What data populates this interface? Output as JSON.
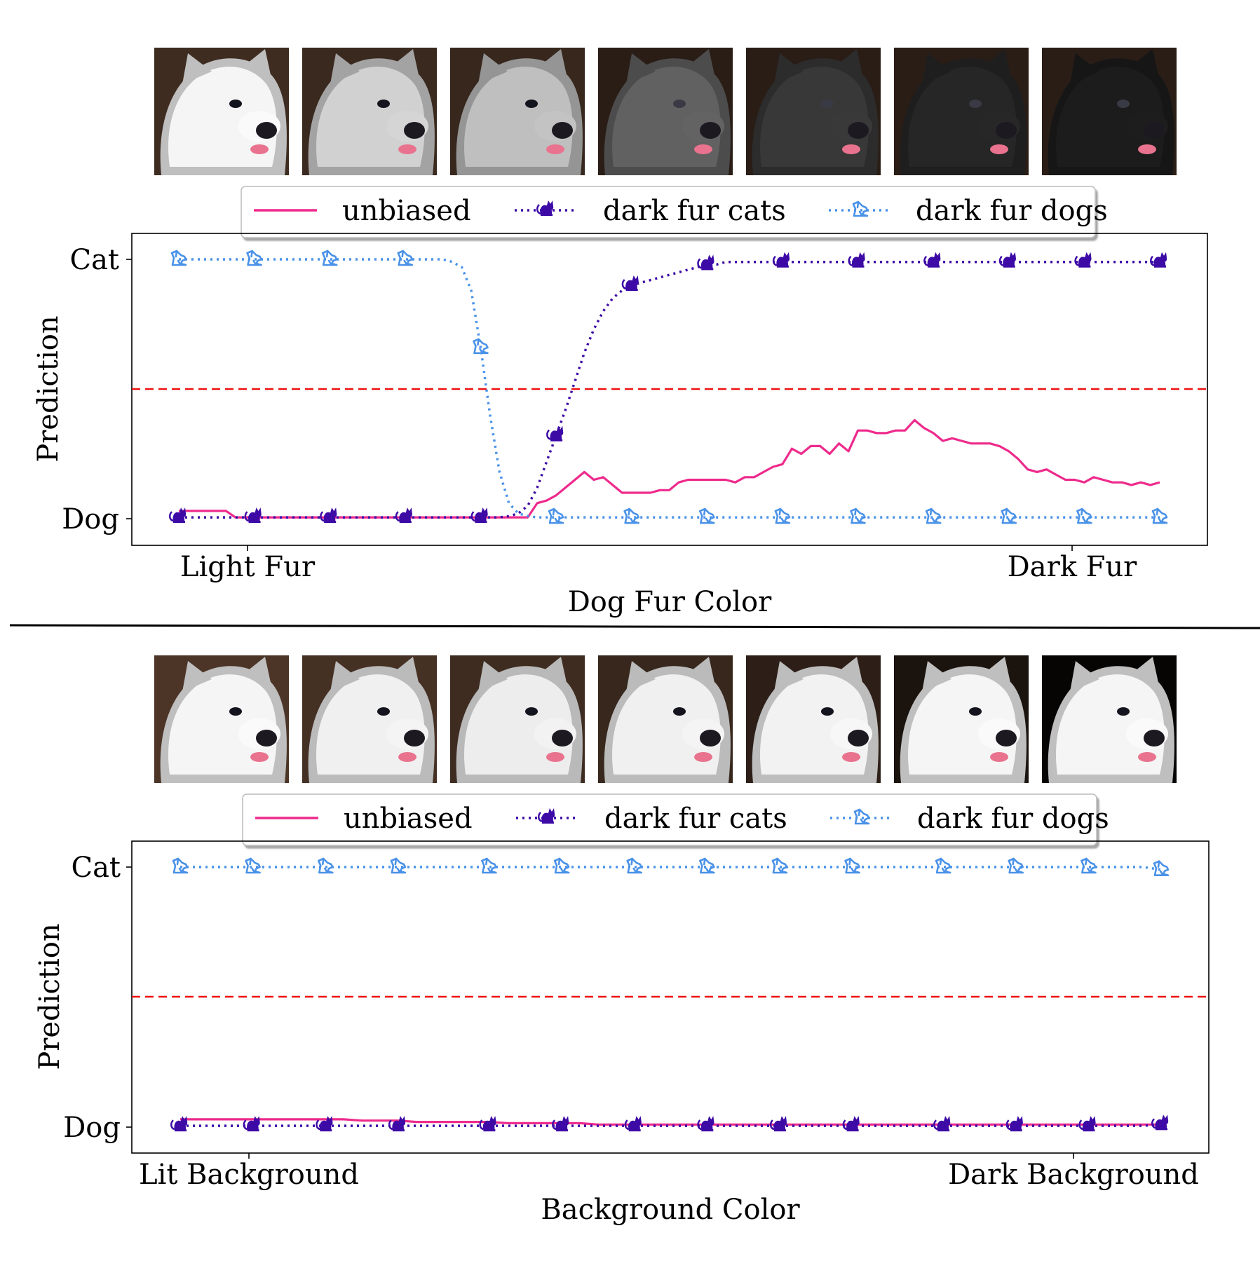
{
  "colors": {
    "unbiased": "#ee2a8c",
    "dark_fur_cats": "#3d0aa6",
    "dark_fur_dogs": "#4a92e8",
    "threshold": "#ee1111"
  },
  "legend": {
    "unbiased": "unbiased",
    "dark_fur_cats": "dark fur cats",
    "dark_fur_dogs": "dark fur dogs"
  },
  "icons": {
    "cat_marker": "cat-icon",
    "dog_marker": "dog-icon"
  },
  "chart_data": [
    {
      "type": "line",
      "xlabel": "Dog Fur Color",
      "ylabel": "Prediction",
      "x_tick_labels": [
        "Light Fur",
        "Dark Fur"
      ],
      "y_tick_labels": [
        "Dog",
        "Cat"
      ],
      "ylim": [
        0,
        1
      ],
      "threshold": 0.5,
      "grid": false,
      "legend_position": "top",
      "image_strip": [
        {
          "fur": 0.96,
          "bg": 0.18
        },
        {
          "fur": 0.82,
          "bg": 0.17
        },
        {
          "fur": 0.75,
          "bg": 0.16
        },
        {
          "fur": 0.38,
          "bg": 0.12
        },
        {
          "fur": 0.22,
          "bg": 0.12
        },
        {
          "fur": 0.15,
          "bg": 0.12
        },
        {
          "fur": 0.11,
          "bg": 0.12
        }
      ],
      "series": [
        {
          "key": "unbiased",
          "values": [
            0.03,
            0.03,
            0.03,
            0.03,
            0.03,
            0.03,
            0.005,
            0.005,
            0.005,
            0.005,
            0.005,
            0.005,
            0.005,
            0.005,
            0.005,
            0.005,
            0.005,
            0.005,
            0.005,
            0.005,
            0.005,
            0.005,
            0.005,
            0.005,
            0.005,
            0.005,
            0.005,
            0.005,
            0.005,
            0.005,
            0.005,
            0.005,
            0.005,
            0.005,
            0.005,
            0.005,
            0.005,
            0.005,
            0.06,
            0.07,
            0.09,
            0.12,
            0.15,
            0.18,
            0.15,
            0.16,
            0.13,
            0.1,
            0.1,
            0.1,
            0.1,
            0.11,
            0.11,
            0.14,
            0.15,
            0.15,
            0.15,
            0.15,
            0.15,
            0.14,
            0.16,
            0.16,
            0.18,
            0.2,
            0.21,
            0.27,
            0.25,
            0.28,
            0.28,
            0.25,
            0.29,
            0.26,
            0.34,
            0.34,
            0.33,
            0.33,
            0.34,
            0.34,
            0.38,
            0.35,
            0.33,
            0.3,
            0.31,
            0.3,
            0.29,
            0.29,
            0.29,
            0.28,
            0.26,
            0.23,
            0.19,
            0.18,
            0.19,
            0.17,
            0.15,
            0.15,
            0.14,
            0.16,
            0.15,
            0.14,
            0.14,
            0.13,
            0.14,
            0.13,
            0.14
          ]
        },
        {
          "key": "dark_fur_cats",
          "values": [
            0.005,
            0.005,
            0.005,
            0.005,
            0.005,
            0.005,
            0.005,
            0.005,
            0.005,
            0.005,
            0.005,
            0.005,
            0.005,
            0.005,
            0.005,
            0.005,
            0.005,
            0.005,
            0.005,
            0.005,
            0.005,
            0.005,
            0.005,
            0.005,
            0.005,
            0.005,
            0.005,
            0.005,
            0.005,
            0.005,
            0.005,
            0.005,
            0.005,
            0.005,
            0.005,
            0.01,
            0.02,
            0.05,
            0.12,
            0.22,
            0.32,
            0.42,
            0.53,
            0.64,
            0.73,
            0.8,
            0.85,
            0.88,
            0.9,
            0.91,
            0.92,
            0.93,
            0.94,
            0.95,
            0.96,
            0.97,
            0.98,
            0.98,
            0.99,
            0.99,
            0.99,
            0.99,
            0.99,
            0.99,
            0.99,
            0.99,
            0.99,
            0.99,
            0.99,
            0.99,
            0.99,
            0.99,
            0.99,
            0.99,
            0.99,
            0.99,
            0.99,
            0.99,
            0.99,
            0.99,
            0.99,
            0.99,
            0.99,
            0.99,
            0.99,
            0.99,
            0.99,
            0.99,
            0.99,
            0.99,
            0.99,
            0.99,
            0.99,
            0.99,
            0.99,
            0.99,
            0.99,
            0.99,
            0.99,
            0.99,
            0.99,
            0.99,
            0.99,
            0.99,
            0.99
          ]
        },
        {
          "key": "dark_fur_dogs",
          "values": [
            1.0,
            1.0,
            1.0,
            1.0,
            1.0,
            1.0,
            1.0,
            1.0,
            1.0,
            1.0,
            1.0,
            1.0,
            1.0,
            1.0,
            1.0,
            1.0,
            1.0,
            1.0,
            1.0,
            1.0,
            1.0,
            1.0,
            1.0,
            1.0,
            1.0,
            1.0,
            1.0,
            1.0,
            1.0,
            0.99,
            0.97,
            0.88,
            0.66,
            0.4,
            0.18,
            0.06,
            0.02,
            0.01,
            0.005,
            0.005,
            0.005,
            0.005,
            0.005,
            0.005,
            0.005,
            0.005,
            0.005,
            0.005,
            0.005,
            0.005,
            0.005,
            0.005,
            0.005,
            0.005,
            0.005,
            0.005,
            0.005,
            0.005,
            0.005,
            0.005,
            0.005,
            0.005,
            0.005,
            0.005,
            0.005,
            0.005,
            0.005,
            0.005,
            0.005,
            0.005,
            0.005,
            0.005,
            0.005,
            0.005,
            0.005,
            0.005,
            0.005,
            0.005,
            0.005,
            0.005,
            0.005,
            0.005,
            0.005,
            0.005,
            0.005,
            0.005,
            0.005,
            0.005,
            0.005,
            0.005,
            0.005,
            0.005,
            0.005,
            0.005,
            0.005,
            0.005,
            0.005,
            0.005,
            0.005,
            0.005,
            0.005,
            0.005,
            0.005,
            0.005,
            0.005
          ]
        }
      ]
    },
    {
      "type": "line",
      "xlabel": "Background Color",
      "ylabel": "Prediction",
      "x_tick_labels": [
        "Lit Background",
        "Dark Background"
      ],
      "y_tick_labels": [
        "Dog",
        "Cat"
      ],
      "ylim": [
        0,
        1
      ],
      "threshold": 0.5,
      "grid": false,
      "legend_position": "top",
      "image_strip": [
        {
          "fur": 0.96,
          "bg": 0.22
        },
        {
          "fur": 0.94,
          "bg": 0.2
        },
        {
          "fur": 0.93,
          "bg": 0.18
        },
        {
          "fur": 0.94,
          "bg": 0.16
        },
        {
          "fur": 0.95,
          "bg": 0.13
        },
        {
          "fur": 0.96,
          "bg": 0.08
        },
        {
          "fur": 0.96,
          "bg": 0.02
        }
      ],
      "series": [
        {
          "key": "unbiased",
          "values": [
            0.03,
            0.03,
            0.03,
            0.03,
            0.03,
            0.03,
            0.03,
            0.03,
            0.03,
            0.03,
            0.025,
            0.025,
            0.025,
            0.02,
            0.02,
            0.02,
            0.02,
            0.02,
            0.015,
            0.015,
            0.015,
            0.015,
            0.015,
            0.01,
            0.01,
            0.01,
            0.01,
            0.01,
            0.01,
            0.01,
            0.01,
            0.01,
            0.01,
            0.01,
            0.01,
            0.01,
            0.01,
            0.01,
            0.01,
            0.01,
            0.01,
            0.01,
            0.01,
            0.01,
            0.01,
            0.01,
            0.01,
            0.01,
            0.01,
            0.01,
            0.01,
            0.01,
            0.01,
            0.01,
            0.01
          ]
        },
        {
          "key": "dark_fur_cats",
          "values": [
            0.005,
            0.005,
            0.005,
            0.005,
            0.005,
            0.005,
            0.005,
            0.005,
            0.005,
            0.005,
            0.005,
            0.005,
            0.005,
            0.005,
            0.005,
            0.005,
            0.005,
            0.005,
            0.005,
            0.005,
            0.005,
            0.005,
            0.005,
            0.005,
            0.005,
            0.005,
            0.005,
            0.005,
            0.005,
            0.005,
            0.005,
            0.005,
            0.005,
            0.005,
            0.005,
            0.005,
            0.005,
            0.005,
            0.005,
            0.005,
            0.005,
            0.005,
            0.005,
            0.005,
            0.005,
            0.005,
            0.005,
            0.005,
            0.005,
            0.005,
            0.005,
            0.005,
            0.005,
            0.005,
            0.01
          ]
        },
        {
          "key": "dark_fur_dogs",
          "values": [
            1.0,
            1.0,
            1.0,
            1.0,
            1.0,
            1.0,
            1.0,
            1.0,
            1.0,
            1.0,
            1.0,
            1.0,
            1.0,
            1.0,
            1.0,
            1.0,
            1.0,
            1.0,
            1.0,
            1.0,
            1.0,
            1.0,
            1.0,
            1.0,
            1.0,
            1.0,
            1.0,
            1.0,
            1.0,
            1.0,
            1.0,
            1.0,
            1.0,
            1.0,
            1.0,
            1.0,
            1.0,
            1.0,
            1.0,
            1.0,
            1.0,
            1.0,
            1.0,
            1.0,
            1.0,
            1.0,
            1.0,
            1.0,
            1.0,
            1.0,
            1.0,
            1.0,
            1.0,
            1.0,
            0.99
          ]
        }
      ]
    }
  ]
}
